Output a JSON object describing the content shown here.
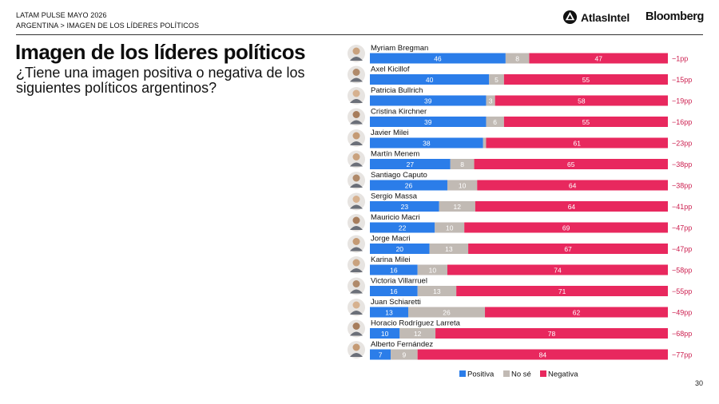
{
  "header": {
    "line1": "LATAM PULSE MAYO 2026",
    "line2": "ARGENTINA > IMAGEN DE LOS LÍDERES POLÍTICOS",
    "brand_atlas": "AtlasIntel",
    "brand_bloomberg": "Bloomberg"
  },
  "title": "Imagen de los líderes políticos",
  "subtitle": "¿Tiene una imagen positiva o negativa de los siguientes políticos argentinos?",
  "page_number": "30",
  "colors": {
    "positive": "#2b7de9",
    "unsure": "#c1bab4",
    "negative": "#e8285e",
    "net": "#cc1f4f"
  },
  "chart_data": {
    "type": "bar",
    "orientation": "horizontal",
    "stacked": true,
    "xlim": [
      0,
      100
    ],
    "categories": [
      "Myriam Bregman",
      "Axel Kicillof",
      "Patricia Bullrich",
      "Cristina Kirchner",
      "Javier Milei",
      "Martín Menem",
      "Santiago Caputo",
      "Sergio Massa",
      "Mauricio Macri",
      "Jorge Macri",
      "Karina Milei",
      "Victoria Villarruel",
      "Juan Schiaretti",
      "Horacio Rodríguez Larreta",
      "Alberto Fernández"
    ],
    "series": [
      {
        "name": "Positiva",
        "color": "#2b7de9",
        "values": [
          46,
          40,
          39,
          39,
          38,
          27,
          26,
          23,
          22,
          20,
          16,
          16,
          13,
          10,
          7
        ]
      },
      {
        "name": "No sé",
        "color": "#c1bab4",
        "values": [
          8,
          5,
          3,
          6,
          1,
          8,
          10,
          12,
          10,
          13,
          10,
          13,
          26,
          12,
          9
        ]
      },
      {
        "name": "Negativa",
        "color": "#e8285e",
        "values": [
          47,
          55,
          58,
          55,
          61,
          65,
          64,
          64,
          69,
          67,
          74,
          71,
          62,
          78,
          84
        ]
      }
    ],
    "segment_labels": [
      [
        "46",
        "8",
        "47"
      ],
      [
        "40",
        "5",
        "55"
      ],
      [
        "39",
        "3",
        "58"
      ],
      [
        "39",
        "6",
        "55"
      ],
      [
        "38",
        "",
        "61"
      ],
      [
        "27",
        "8",
        "65"
      ],
      [
        "26",
        "10",
        "64"
      ],
      [
        "23",
        "12",
        "64"
      ],
      [
        "22",
        "10",
        "69"
      ],
      [
        "20",
        "13",
        "67"
      ],
      [
        "16",
        "10",
        "74"
      ],
      [
        "16",
        "13",
        "71"
      ],
      [
        "13",
        "26",
        "62"
      ],
      [
        "10",
        "12",
        "78"
      ],
      [
        "7",
        "9",
        "84"
      ]
    ],
    "net_labels": [
      "−1pp",
      "−15pp",
      "−19pp",
      "−16pp",
      "−23pp",
      "−38pp",
      "−38pp",
      "−41pp",
      "−47pp",
      "−47pp",
      "−58pp",
      "−55pp",
      "−49pp",
      "−68pp",
      "−77pp"
    ],
    "legend": [
      "Positiva",
      "No sé",
      "Negativa"
    ],
    "legend_position": "bottom"
  }
}
